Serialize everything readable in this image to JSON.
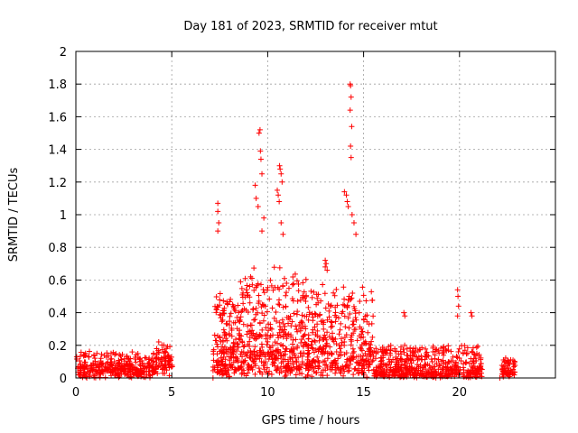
{
  "chart_data": {
    "type": "scatter",
    "title": "Day 181 of 2023, SRMTID for receiver mtut",
    "xlabel": "GPS time / hours",
    "ylabel": "SRMTID / TECUs",
    "xlim": [
      0,
      25
    ],
    "ylim": [
      0,
      2
    ],
    "x_ticks": [
      0,
      5,
      10,
      15,
      20
    ],
    "x_tick_labels": [
      "0",
      "5",
      "10",
      "15",
      "20"
    ],
    "y_ticks": [
      0,
      0.2,
      0.4,
      0.6,
      0.8,
      1,
      1.2,
      1.4,
      1.6,
      1.8,
      2
    ],
    "y_tick_labels": [
      "0",
      "0.2",
      "0.4",
      "0.6",
      "0.8",
      "1",
      "1.2",
      "1.4",
      "1.6",
      "1.8",
      "2"
    ],
    "grid": true,
    "marker": "+",
    "marker_color": "#ff0000",
    "series": [
      {
        "name": "mtut",
        "segments": [
          {
            "t0": 0.0,
            "t1": 5.05,
            "base": 0.05,
            "amp": 0.12,
            "n": 420
          },
          {
            "t0": 7.15,
            "t1": 8.5,
            "base": 0.1,
            "amp": 0.45,
            "n": 180
          },
          {
            "t0": 8.5,
            "t1": 12.0,
            "base": 0.15,
            "amp": 0.55,
            "n": 420
          },
          {
            "t0": 12.0,
            "t1": 15.5,
            "base": 0.1,
            "amp": 0.5,
            "n": 380
          },
          {
            "t0": 15.5,
            "t1": 21.2,
            "base": 0.03,
            "amp": 0.18,
            "n": 520
          },
          {
            "t0": 22.2,
            "t1": 22.9,
            "base": 0.04,
            "amp": 0.1,
            "n": 60
          }
        ],
        "spikes": [
          [
            7.4,
            1.07
          ],
          [
            7.4,
            1.02
          ],
          [
            7.45,
            0.95
          ],
          [
            7.4,
            0.9
          ],
          [
            9.35,
            1.18
          ],
          [
            9.4,
            1.1
          ],
          [
            9.5,
            1.05
          ],
          [
            9.55,
            1.5
          ],
          [
            9.6,
            1.52
          ],
          [
            9.62,
            1.39
          ],
          [
            9.65,
            1.34
          ],
          [
            9.7,
            1.25
          ],
          [
            9.8,
            0.98
          ],
          [
            9.7,
            0.9
          ],
          [
            10.5,
            1.15
          ],
          [
            10.55,
            1.12
          ],
          [
            10.6,
            1.08
          ],
          [
            10.62,
            1.3
          ],
          [
            10.65,
            1.28
          ],
          [
            10.7,
            1.25
          ],
          [
            10.75,
            1.2
          ],
          [
            10.7,
            0.95
          ],
          [
            10.8,
            0.88
          ],
          [
            13.0,
            0.72
          ],
          [
            13.05,
            0.7
          ],
          [
            13.0,
            0.68
          ],
          [
            13.1,
            0.66
          ],
          [
            14.0,
            1.14
          ],
          [
            14.1,
            1.12
          ],
          [
            14.15,
            1.08
          ],
          [
            14.2,
            1.05
          ],
          [
            14.3,
            1.8
          ],
          [
            14.32,
            1.79
          ],
          [
            14.35,
            1.72
          ],
          [
            14.3,
            1.64
          ],
          [
            14.38,
            1.54
          ],
          [
            14.32,
            1.42
          ],
          [
            14.35,
            1.35
          ],
          [
            14.4,
            1.0
          ],
          [
            14.5,
            0.95
          ],
          [
            14.6,
            0.88
          ],
          [
            19.9,
            0.54
          ],
          [
            19.92,
            0.5
          ],
          [
            19.95,
            0.44
          ],
          [
            19.9,
            0.38
          ],
          [
            20.6,
            0.4
          ],
          [
            20.65,
            0.38
          ],
          [
            17.1,
            0.4
          ],
          [
            17.15,
            0.38
          ],
          [
            7.15,
            0.0
          ],
          [
            22.1,
            0.0
          ],
          [
            12.3,
            0.01
          ]
        ]
      }
    ]
  }
}
